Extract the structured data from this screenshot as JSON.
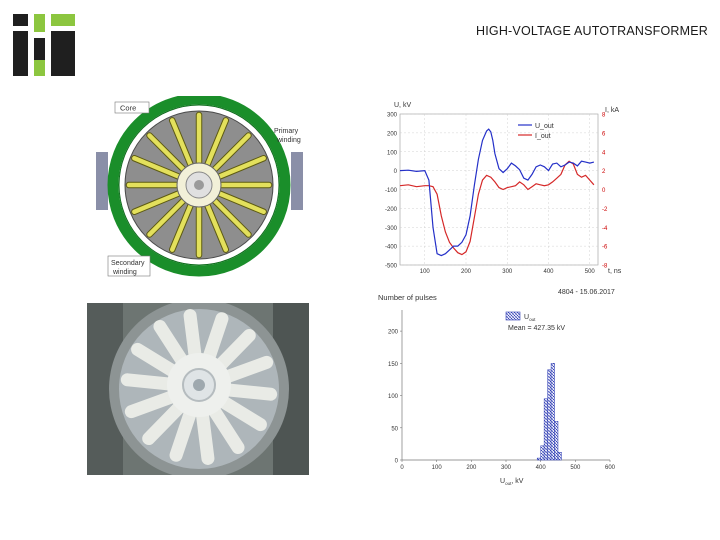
{
  "slide": {
    "title": "HIGH-VOLTAGE AUTOTRANSFORMER"
  },
  "drawing": {
    "labels": {
      "core": "Core",
      "primary_1": "Primary",
      "primary_2": "winding",
      "secondary_1": "Secondary",
      "secondary_2": "winding"
    }
  },
  "photo": {
    "description_icon": "transformer-photo"
  },
  "waveform": {
    "type": "line",
    "left_axis_label": "U, kV",
    "right_axis_label": "I, kA",
    "x_axis_label": "t, ns",
    "left_ticks": [
      "300",
      "200",
      "100",
      "0",
      "-100",
      "-200",
      "-300",
      "-400",
      "-500"
    ],
    "right_ticks": [
      "8",
      "6",
      "4",
      "2",
      "0",
      "-2",
      "-4",
      "-6",
      "-8"
    ],
    "x_ticks": [
      "100",
      "200",
      "300",
      "400",
      "500"
    ],
    "legend": [
      "U_out",
      "I_out"
    ],
    "legend_sub": [
      "out",
      "out"
    ],
    "footer": "4804 - 15.06.2017",
    "xlim": [
      40,
      520
    ],
    "ylim_left": [
      -500,
      300
    ],
    "ylim_right": [
      -8,
      8
    ],
    "colors": {
      "u": "#2430c8",
      "i": "#d52828",
      "grid": "#c8c8c8"
    },
    "series_u": {
      "name": "U_out",
      "x": [
        40,
        60,
        80,
        100,
        110,
        120,
        130,
        140,
        150,
        160,
        170,
        180,
        190,
        200,
        210,
        220,
        230,
        240,
        250,
        255,
        260,
        265,
        270,
        280,
        290,
        300,
        310,
        320,
        330,
        340,
        350,
        360,
        370,
        380,
        390,
        400,
        410,
        420,
        430,
        440,
        450,
        460,
        470,
        480,
        490,
        500,
        510
      ],
      "y": [
        0,
        2,
        -4,
        0,
        -50,
        -300,
        -440,
        -450,
        -440,
        -420,
        -400,
        -400,
        -380,
        -340,
        -240,
        -80,
        60,
        160,
        210,
        220,
        205,
        160,
        90,
        10,
        -10,
        10,
        40,
        25,
        5,
        -40,
        -50,
        -20,
        20,
        30,
        20,
        0,
        35,
        40,
        20,
        30,
        45,
        40,
        25,
        50,
        45,
        40,
        45
      ]
    },
    "series_i": {
      "name": "I_out",
      "x": [
        40,
        60,
        80,
        100,
        110,
        120,
        130,
        140,
        150,
        160,
        170,
        180,
        190,
        200,
        210,
        220,
        230,
        240,
        250,
        260,
        270,
        280,
        290,
        300,
        310,
        320,
        330,
        340,
        350,
        360,
        370,
        380,
        390,
        400,
        410,
        420,
        430,
        440,
        450,
        460,
        470,
        480,
        490,
        500,
        510
      ],
      "y": [
        0.4,
        0.5,
        0.3,
        0.4,
        0.4,
        0.3,
        -0.5,
        -2.8,
        -4.5,
        -5.6,
        -6.2,
        -6.7,
        -6.9,
        -6.6,
        -5.5,
        -3.0,
        -0.5,
        1.0,
        1.5,
        1.3,
        0.8,
        0.2,
        0.0,
        0.2,
        0.3,
        0.4,
        0.8,
        0.5,
        0.0,
        0.3,
        0.6,
        0.5,
        0.4,
        0.5,
        0.8,
        1.2,
        1.6,
        2.6,
        3.0,
        2.7,
        1.6,
        1.3,
        1.5,
        1.0,
        0.5
      ]
    }
  },
  "histogram": {
    "type": "bar",
    "title": "Number of pulses",
    "x_axis_label": "U",
    "x_axis_sub": "out",
    "x_axis_unit": ", kV",
    "y_ticks": [
      "0",
      "50",
      "100",
      "150",
      "200"
    ],
    "x_ticks": [
      "0",
      "100",
      "200",
      "300",
      "400",
      "500",
      "600"
    ],
    "legend_label": "U",
    "legend_sub": "out",
    "mean_text": "Mean = 427.35 kV",
    "xlim": [
      0,
      600
    ],
    "ylim": [
      0,
      225
    ],
    "bar_color": "#2d3cb4",
    "bins": [
      395,
      405,
      415,
      425,
      435,
      445,
      455
    ],
    "values": [
      3,
      22,
      95,
      140,
      150,
      60,
      12
    ]
  }
}
